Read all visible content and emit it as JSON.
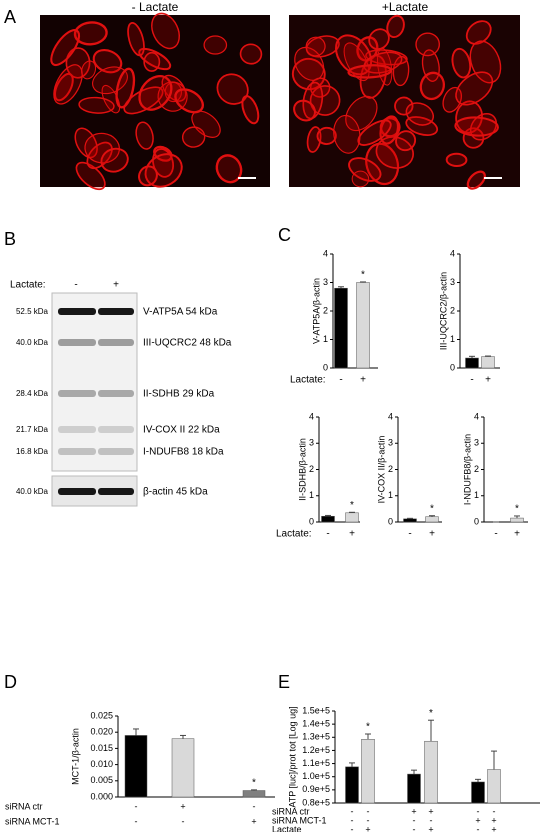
{
  "panel_labels": [
    "A",
    "B",
    "C",
    "D",
    "E"
  ],
  "images": {
    "minus_lactate": "- Lactate",
    "plus_lactate": "+Lactate"
  },
  "blot": {
    "lactate_label": "Lactate:",
    "lanes": [
      "-",
      "+"
    ],
    "markers": [
      "52.5 kDa",
      "40.0 kDa",
      "28.4 kDa",
      "21.7 kDa",
      "16.8 kDa",
      "40.0 kDa"
    ],
    "bands": [
      "V-ATP5A 54 kDa",
      "III-UQCRC2 48 kDa",
      "II-SDHB 29 kDa",
      "IV-COX II 22 kDa",
      "I-NDUFB8 18 kDa",
      "β-actin 45 kDa"
    ]
  },
  "chart_data": [
    {
      "type": "bar",
      "ylabel": "V-ATP5A/β-actin",
      "categories": [
        "-",
        "+"
      ],
      "values": [
        2.8,
        3.0
      ],
      "errors": [
        0.05,
        0.02
      ],
      "colors": [
        "#000000",
        "#d9d9d9"
      ],
      "ylim": [
        0,
        4
      ],
      "yticks": [
        0,
        1,
        2,
        3,
        4
      ],
      "significance": [
        null,
        "*"
      ],
      "row_label": "Lactate:"
    },
    {
      "type": "bar",
      "ylabel": "III-UQCRC2/β-actin",
      "categories": [
        "-",
        "+"
      ],
      "values": [
        0.35,
        0.4
      ],
      "errors": [
        0.06,
        0.02
      ],
      "colors": [
        "#000000",
        "#d9d9d9"
      ],
      "ylim": [
        0,
        4
      ],
      "yticks": [
        0,
        1,
        2,
        3,
        4
      ]
    },
    {
      "type": "bar",
      "ylabel": "II-SDHB/β-actin",
      "categories": [
        "-",
        "+"
      ],
      "values": [
        0.22,
        0.35
      ],
      "errors": [
        0.03,
        0.02
      ],
      "colors": [
        "#000000",
        "#d9d9d9"
      ],
      "ylim": [
        0,
        4
      ],
      "yticks": [
        0,
        1,
        2,
        3,
        4
      ],
      "significance": [
        null,
        "*"
      ],
      "row_label": "Lactate:"
    },
    {
      "type": "bar",
      "ylabel": "IV-COX II/β-actin",
      "categories": [
        "-",
        "+"
      ],
      "values": [
        0.12,
        0.2
      ],
      "errors": [
        0.02,
        0.04
      ],
      "colors": [
        "#000000",
        "#d9d9d9"
      ],
      "ylim": [
        0,
        4
      ],
      "yticks": [
        0,
        1,
        2,
        3,
        4
      ],
      "significance": [
        null,
        "*"
      ]
    },
    {
      "type": "bar",
      "ylabel": "I-NDUFB8/β-actin",
      "categories": [
        "-",
        "+"
      ],
      "values": [
        0.0,
        0.15
      ],
      "errors": [
        0.0,
        0.08
      ],
      "colors": [
        "#000000",
        "#d9d9d9"
      ],
      "ylim": [
        0,
        4
      ],
      "yticks": [
        0,
        1,
        2,
        3,
        4
      ],
      "significance": [
        null,
        "*"
      ]
    },
    {
      "type": "bar",
      "ylabel": "MCT-1/β-actin",
      "values": [
        0.019,
        0.018,
        0.002
      ],
      "errors": [
        0.002,
        0.001,
        0.0002
      ],
      "colors": [
        "#000000",
        "#d9d9d9",
        "#808080"
      ],
      "ylim": [
        0,
        0.025
      ],
      "yticks": [
        {
          "value": 0,
          "label": "0.000"
        },
        {
          "value": 0.005,
          "label": "0.005"
        },
        {
          "value": 0.01,
          "label": "0.010"
        },
        {
          "value": 0.015,
          "label": "0.015"
        },
        {
          "value": 0.02,
          "label": "0.020"
        },
        {
          "value": 0.025,
          "label": "0.025"
        }
      ],
      "significance": [
        null,
        null,
        "*"
      ],
      "conditions": [
        {
          "name": "siRNA ctr",
          "values": [
            "-",
            "+",
            "-"
          ]
        },
        {
          "name": "siRNA MCT-1",
          "values": [
            "-",
            "-",
            "+"
          ]
        }
      ]
    },
    {
      "type": "bar",
      "ylabel": "ATP [luc]/prot tot [Log ug]",
      "values": [
        107500,
        128500,
        102000,
        127000,
        96000,
        105500
      ],
      "errors": [
        3000,
        4000,
        3000,
        16000,
        2000,
        14000
      ],
      "colors": [
        "#000000",
        "#d9d9d9",
        "#000000",
        "#d9d9d9",
        "#000000",
        "#d9d9d9"
      ],
      "ylim": [
        80000,
        150000
      ],
      "yticks": [
        {
          "value": 80000,
          "label": "0.8e+5"
        },
        {
          "value": 90000,
          "label": "0.9e+5"
        },
        {
          "value": 100000,
          "label": "1.0e+5"
        },
        {
          "value": 110000,
          "label": "1.1e+5"
        },
        {
          "value": 120000,
          "label": "1.2e+5"
        },
        {
          "value": 130000,
          "label": "1.3e+5"
        },
        {
          "value": 140000,
          "label": "1.4e+5"
        },
        {
          "value": 150000,
          "label": "1.5e+5"
        }
      ],
      "significance": [
        null,
        "*",
        null,
        "*",
        null,
        null
      ],
      "conditions": [
        {
          "name": "siRNA ctr",
          "values": [
            "-",
            "-",
            "+",
            "+",
            "-",
            "-"
          ]
        },
        {
          "name": "siRNA MCT-1",
          "values": [
            "-",
            "-",
            "-",
            "-",
            "+",
            "+"
          ]
        },
        {
          "name": "Lactate",
          "values": [
            "-",
            "+",
            "-",
            "+",
            "-",
            "+"
          ]
        }
      ]
    }
  ]
}
